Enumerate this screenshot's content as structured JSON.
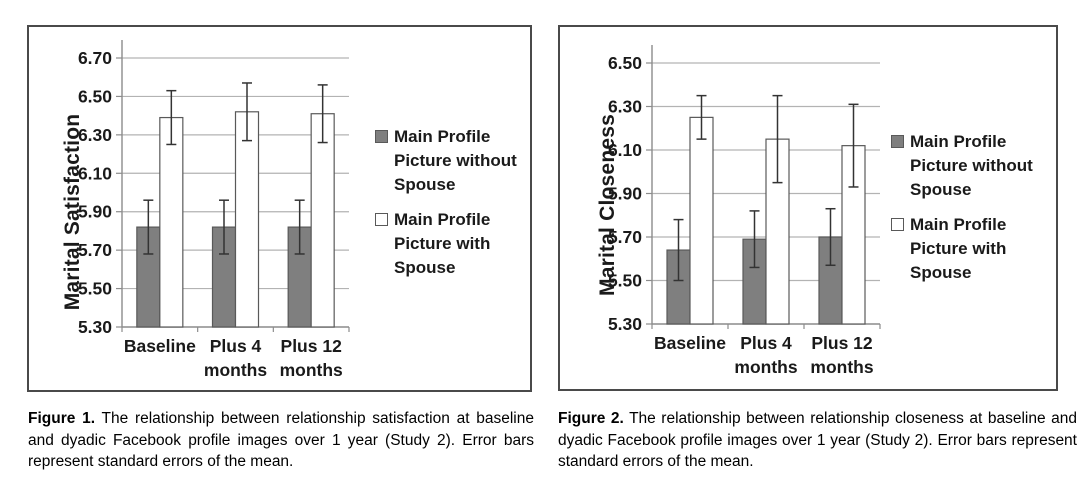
{
  "colors": {
    "grid": "#b3b3b3",
    "axis": "#8c8c8c",
    "error_bar": "#333333",
    "tick_text": "#1a1a1a",
    "panel_border": "#4a4a4a",
    "bar_gray": "#7f7f7f",
    "bar_white": "#ffffff",
    "bar_stroke": "#595959"
  },
  "figures": [
    {
      "caption_label": "Figure 1.",
      "caption_text": "The relationship between relationship satisfaction at baseline and dyadic Facebook profile images over 1 year (Study 2). Error bars represent standard errors of the mean."
    },
    {
      "caption_label": "Figure 2.",
      "caption_text": "The relationship between relationship closeness at baseline and dyadic Facebook profile images over 1 year (Study 2).  Error bars represent standard errors of the mean."
    }
  ],
  "chart_data": [
    {
      "type": "bar",
      "title": "",
      "xlabel": "",
      "ylabel": "Marital Satisfaction",
      "categories": [
        "Baseline",
        "Plus 4 months",
        "Plus 12 months"
      ],
      "series": [
        {
          "name": "Main Profile Picture without Spouse",
          "values": [
            5.82,
            5.82,
            5.82
          ],
          "errors": [
            0.14,
            0.14,
            0.14
          ],
          "fill": "#7f7f7f",
          "stroke": "#595959"
        },
        {
          "name": "Main Profile Picture with Spouse",
          "values": [
            6.39,
            6.42,
            6.41
          ],
          "errors": [
            0.14,
            0.15,
            0.15
          ],
          "fill": "#ffffff",
          "stroke": "#595959"
        }
      ],
      "ylim": [
        5.3,
        6.7
      ],
      "ytick_step": 0.2,
      "ytick_labels": [
        "5.30",
        "5.50",
        "5.70",
        "5.90",
        "6.10",
        "6.30",
        "6.50",
        "6.70"
      ],
      "grid": true,
      "legend_position": "right",
      "error_bars": "standard errors of the mean"
    },
    {
      "type": "bar",
      "title": "",
      "xlabel": "",
      "ylabel": "Marital Closeness",
      "categories": [
        "Baseline",
        "Plus 4 months",
        "Plus 12 months"
      ],
      "series": [
        {
          "name": "Main Profile Picture without Spouse",
          "values": [
            5.64,
            5.69,
            5.7
          ],
          "errors": [
            0.14,
            0.13,
            0.13
          ],
          "fill": "#7f7f7f",
          "stroke": "#595959"
        },
        {
          "name": "Main Profile Picture with Spouse",
          "values": [
            6.25,
            6.15,
            6.12
          ],
          "errors": [
            0.1,
            0.2,
            0.19
          ],
          "fill": "#ffffff",
          "stroke": "#595959"
        }
      ],
      "ylim": [
        5.3,
        6.5
      ],
      "ytick_step": 0.2,
      "ytick_labels": [
        "5.30",
        "5.50",
        "5.70",
        "5.90",
        "6.10",
        "6.30",
        "6.50"
      ],
      "grid": true,
      "legend_position": "right",
      "error_bars": "standard errors of the mean"
    }
  ]
}
